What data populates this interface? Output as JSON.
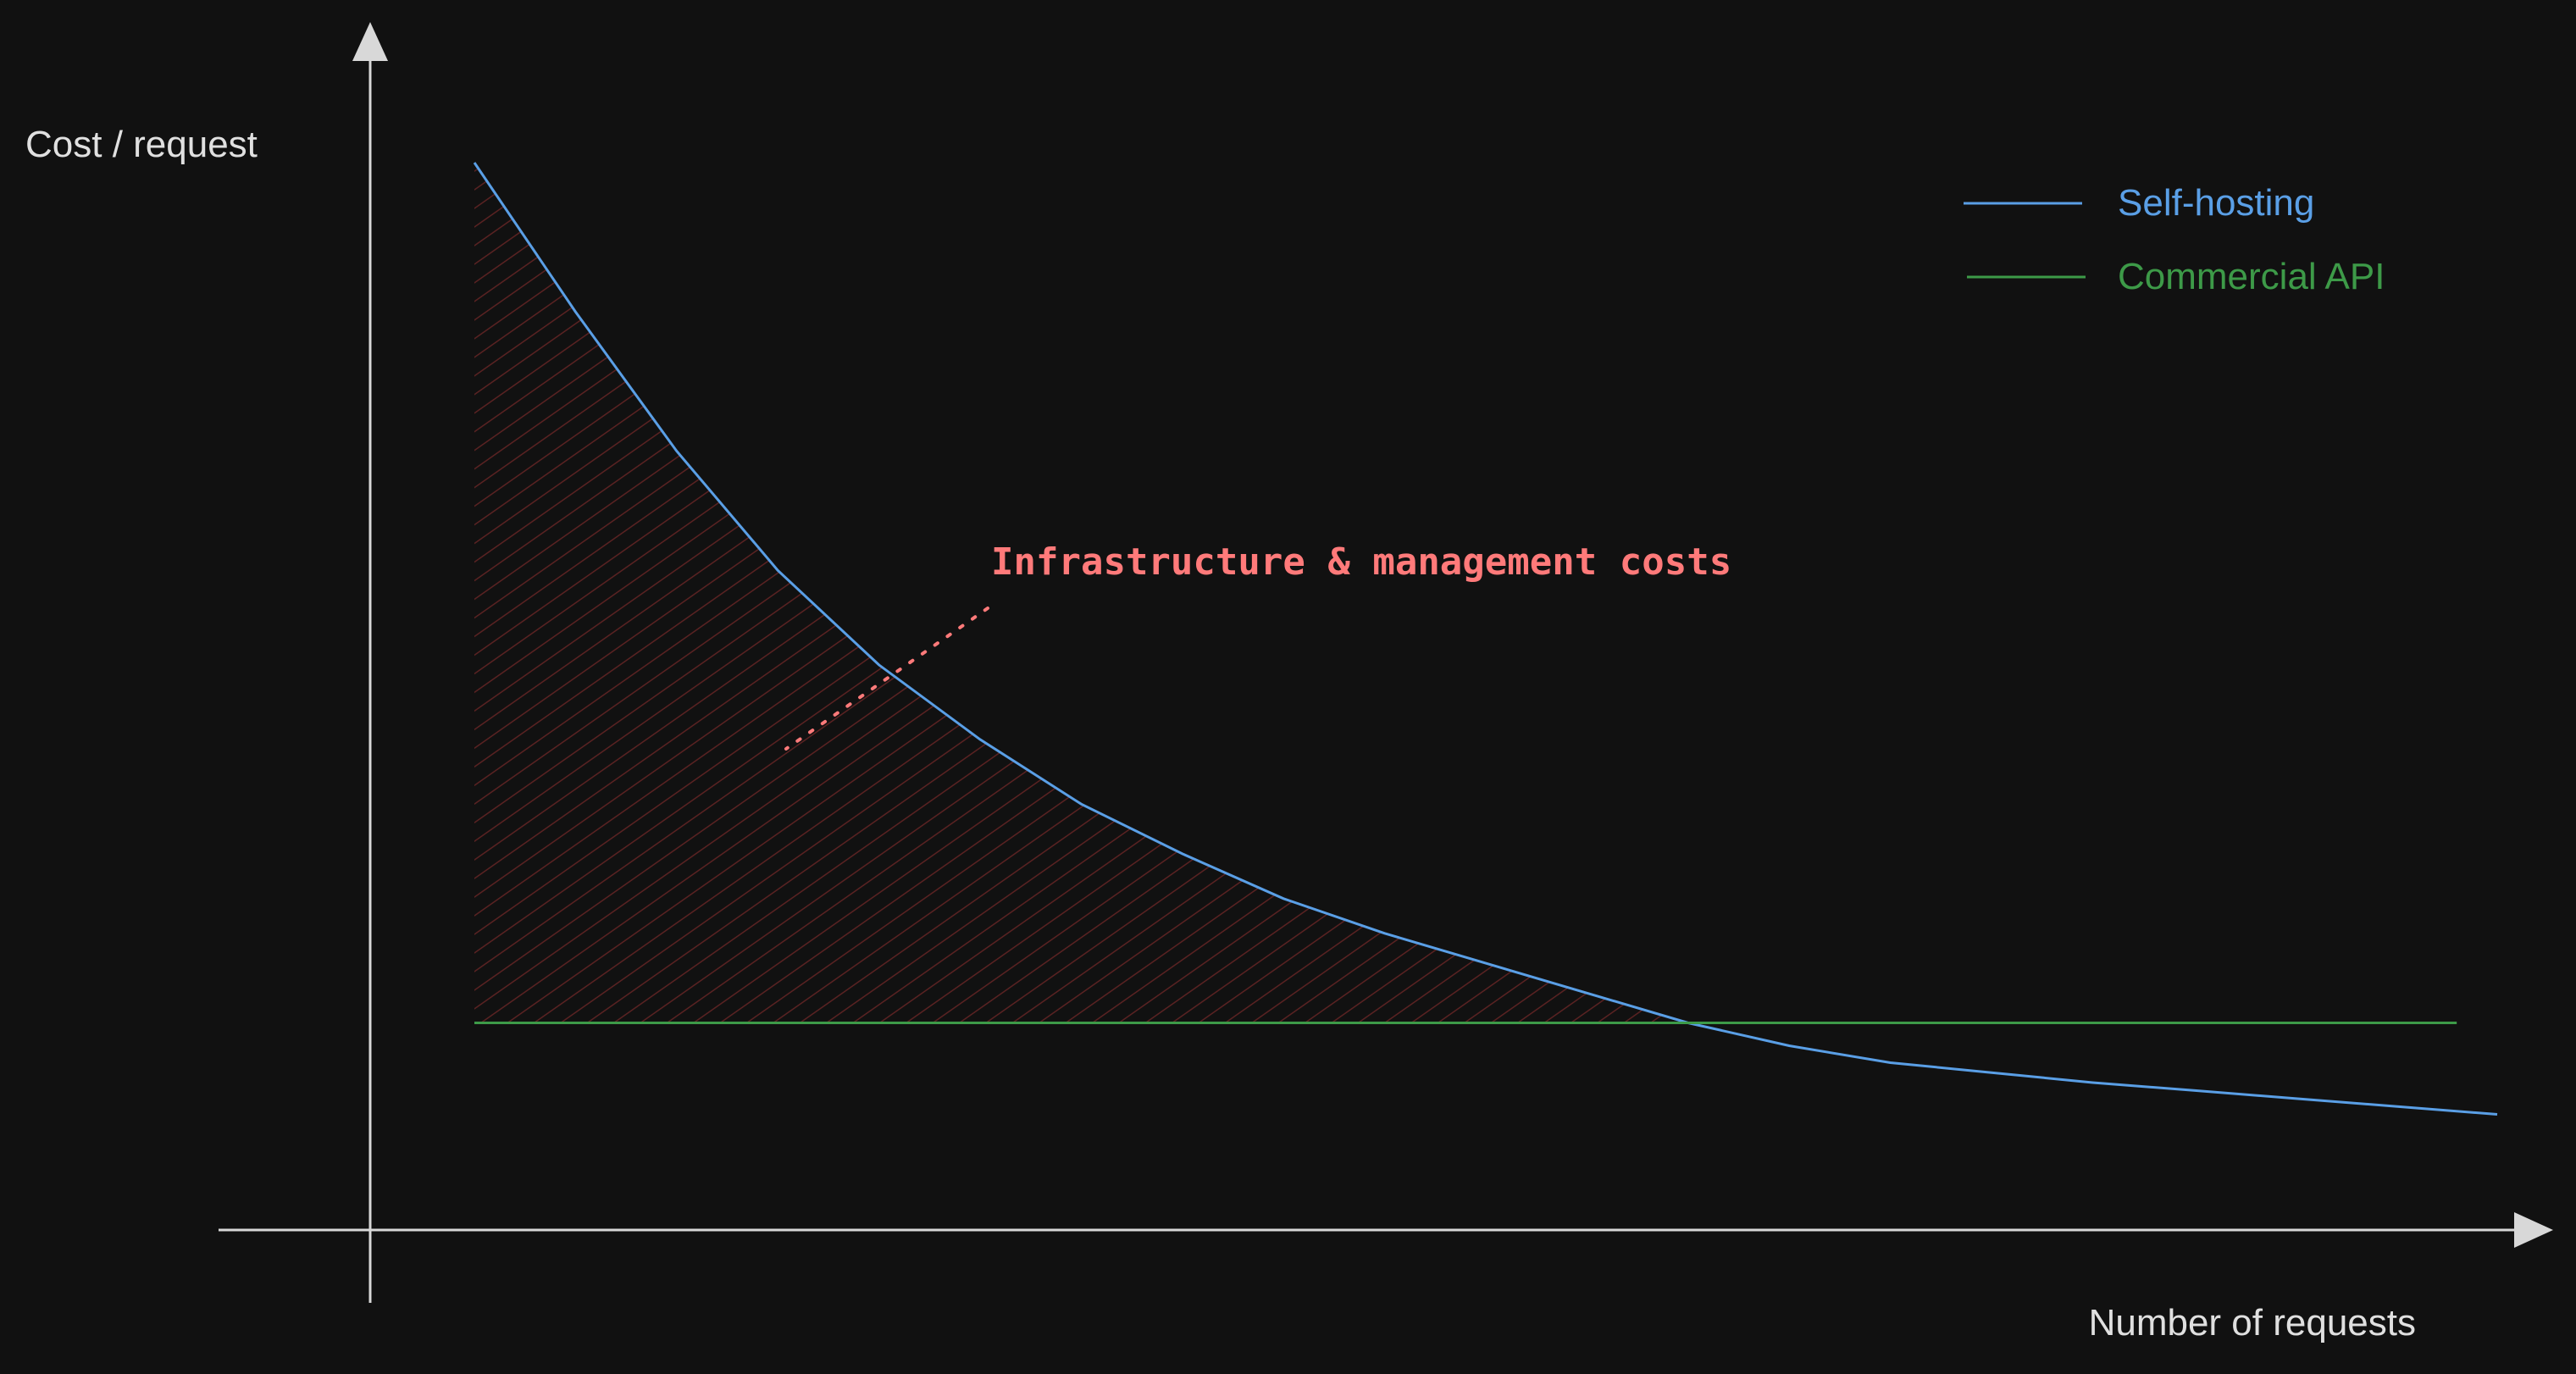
{
  "chart_data": {
    "type": "line",
    "title": "",
    "xlabel": "Number of requests",
    "ylabel": "Cost / request",
    "grid": false,
    "legend_placement": "top-right",
    "series": [
      {
        "name": "Self-hosting",
        "color": "#5a9fe6",
        "x": [
          0.0,
          0.05,
          0.1,
          0.15,
          0.2,
          0.25,
          0.3,
          0.35,
          0.4,
          0.45,
          0.5,
          0.55,
          0.6,
          0.65,
          0.7,
          0.75,
          0.8,
          0.85,
          0.9,
          0.95,
          1.0
        ],
        "y": [
          1.0,
          0.85,
          0.71,
          0.59,
          0.495,
          0.42,
          0.355,
          0.305,
          0.26,
          0.225,
          0.195,
          0.165,
          0.135,
          0.112,
          0.095,
          0.085,
          0.075,
          0.067,
          0.059,
          0.051,
          0.043
        ]
      },
      {
        "name": "Commercial API",
        "color": "#3d9a48",
        "x": [
          0.0,
          0.98
        ],
        "y": [
          0.135,
          0.135
        ]
      }
    ],
    "annotations": [
      {
        "text": "Infrastructure & management costs",
        "color": "#ff7a7a",
        "target": "shaded area between Self-hosting and Commercial API where self-hosting costs more"
      }
    ],
    "colors": {
      "background": "#111111",
      "axis": "#d8d8d8",
      "label": "#e0e0e0",
      "hatch": "#5a2222"
    }
  }
}
